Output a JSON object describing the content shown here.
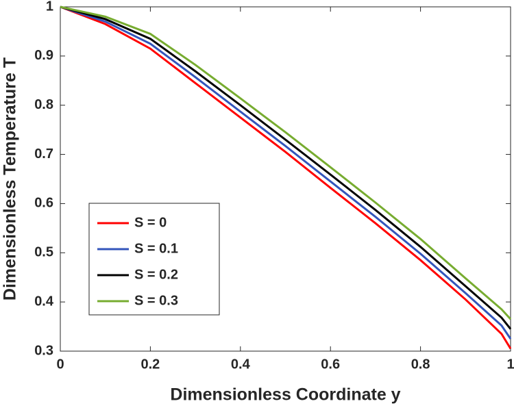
{
  "chart_data": {
    "type": "line",
    "xlabel": "Dimensionless Coordinate y",
    "ylabel": "Dimensionless Temperature T",
    "x": [
      0,
      0.1,
      0.2,
      0.3,
      0.4,
      0.5,
      0.6,
      0.7,
      0.8,
      0.9,
      0.98,
      1
    ],
    "series": [
      {
        "name": "S = 0",
        "color": "#ff0000",
        "values": [
          1,
          0.965,
          0.915,
          0.845,
          0.775,
          0.705,
          0.632,
          0.56,
          0.485,
          0.405,
          0.335,
          0.305
        ]
      },
      {
        "name": "S = 0.1",
        "color": "#3355bb",
        "values": [
          1,
          0.97,
          0.925,
          0.857,
          0.787,
          0.717,
          0.645,
          0.573,
          0.498,
          0.418,
          0.352,
          0.325
        ]
      },
      {
        "name": "S = 0.2",
        "color": "#000000",
        "values": [
          1,
          0.975,
          0.935,
          0.869,
          0.8,
          0.73,
          0.659,
          0.587,
          0.512,
          0.432,
          0.368,
          0.345
        ]
      },
      {
        "name": "S = 0.3",
        "color": "#77ac30",
        "values": [
          1,
          0.98,
          0.945,
          0.882,
          0.814,
          0.745,
          0.674,
          0.602,
          0.528,
          0.448,
          0.385,
          0.365
        ]
      }
    ],
    "xlim": [
      0,
      1
    ],
    "xticks": [
      0,
      0.2,
      0.4,
      0.6,
      0.8,
      1
    ],
    "ylim": [
      0.3,
      1
    ],
    "yticks": [
      0.3,
      0.4,
      0.5,
      0.6,
      0.7,
      0.8,
      0.9,
      1
    ],
    "grid": false,
    "legend": "lower left"
  }
}
